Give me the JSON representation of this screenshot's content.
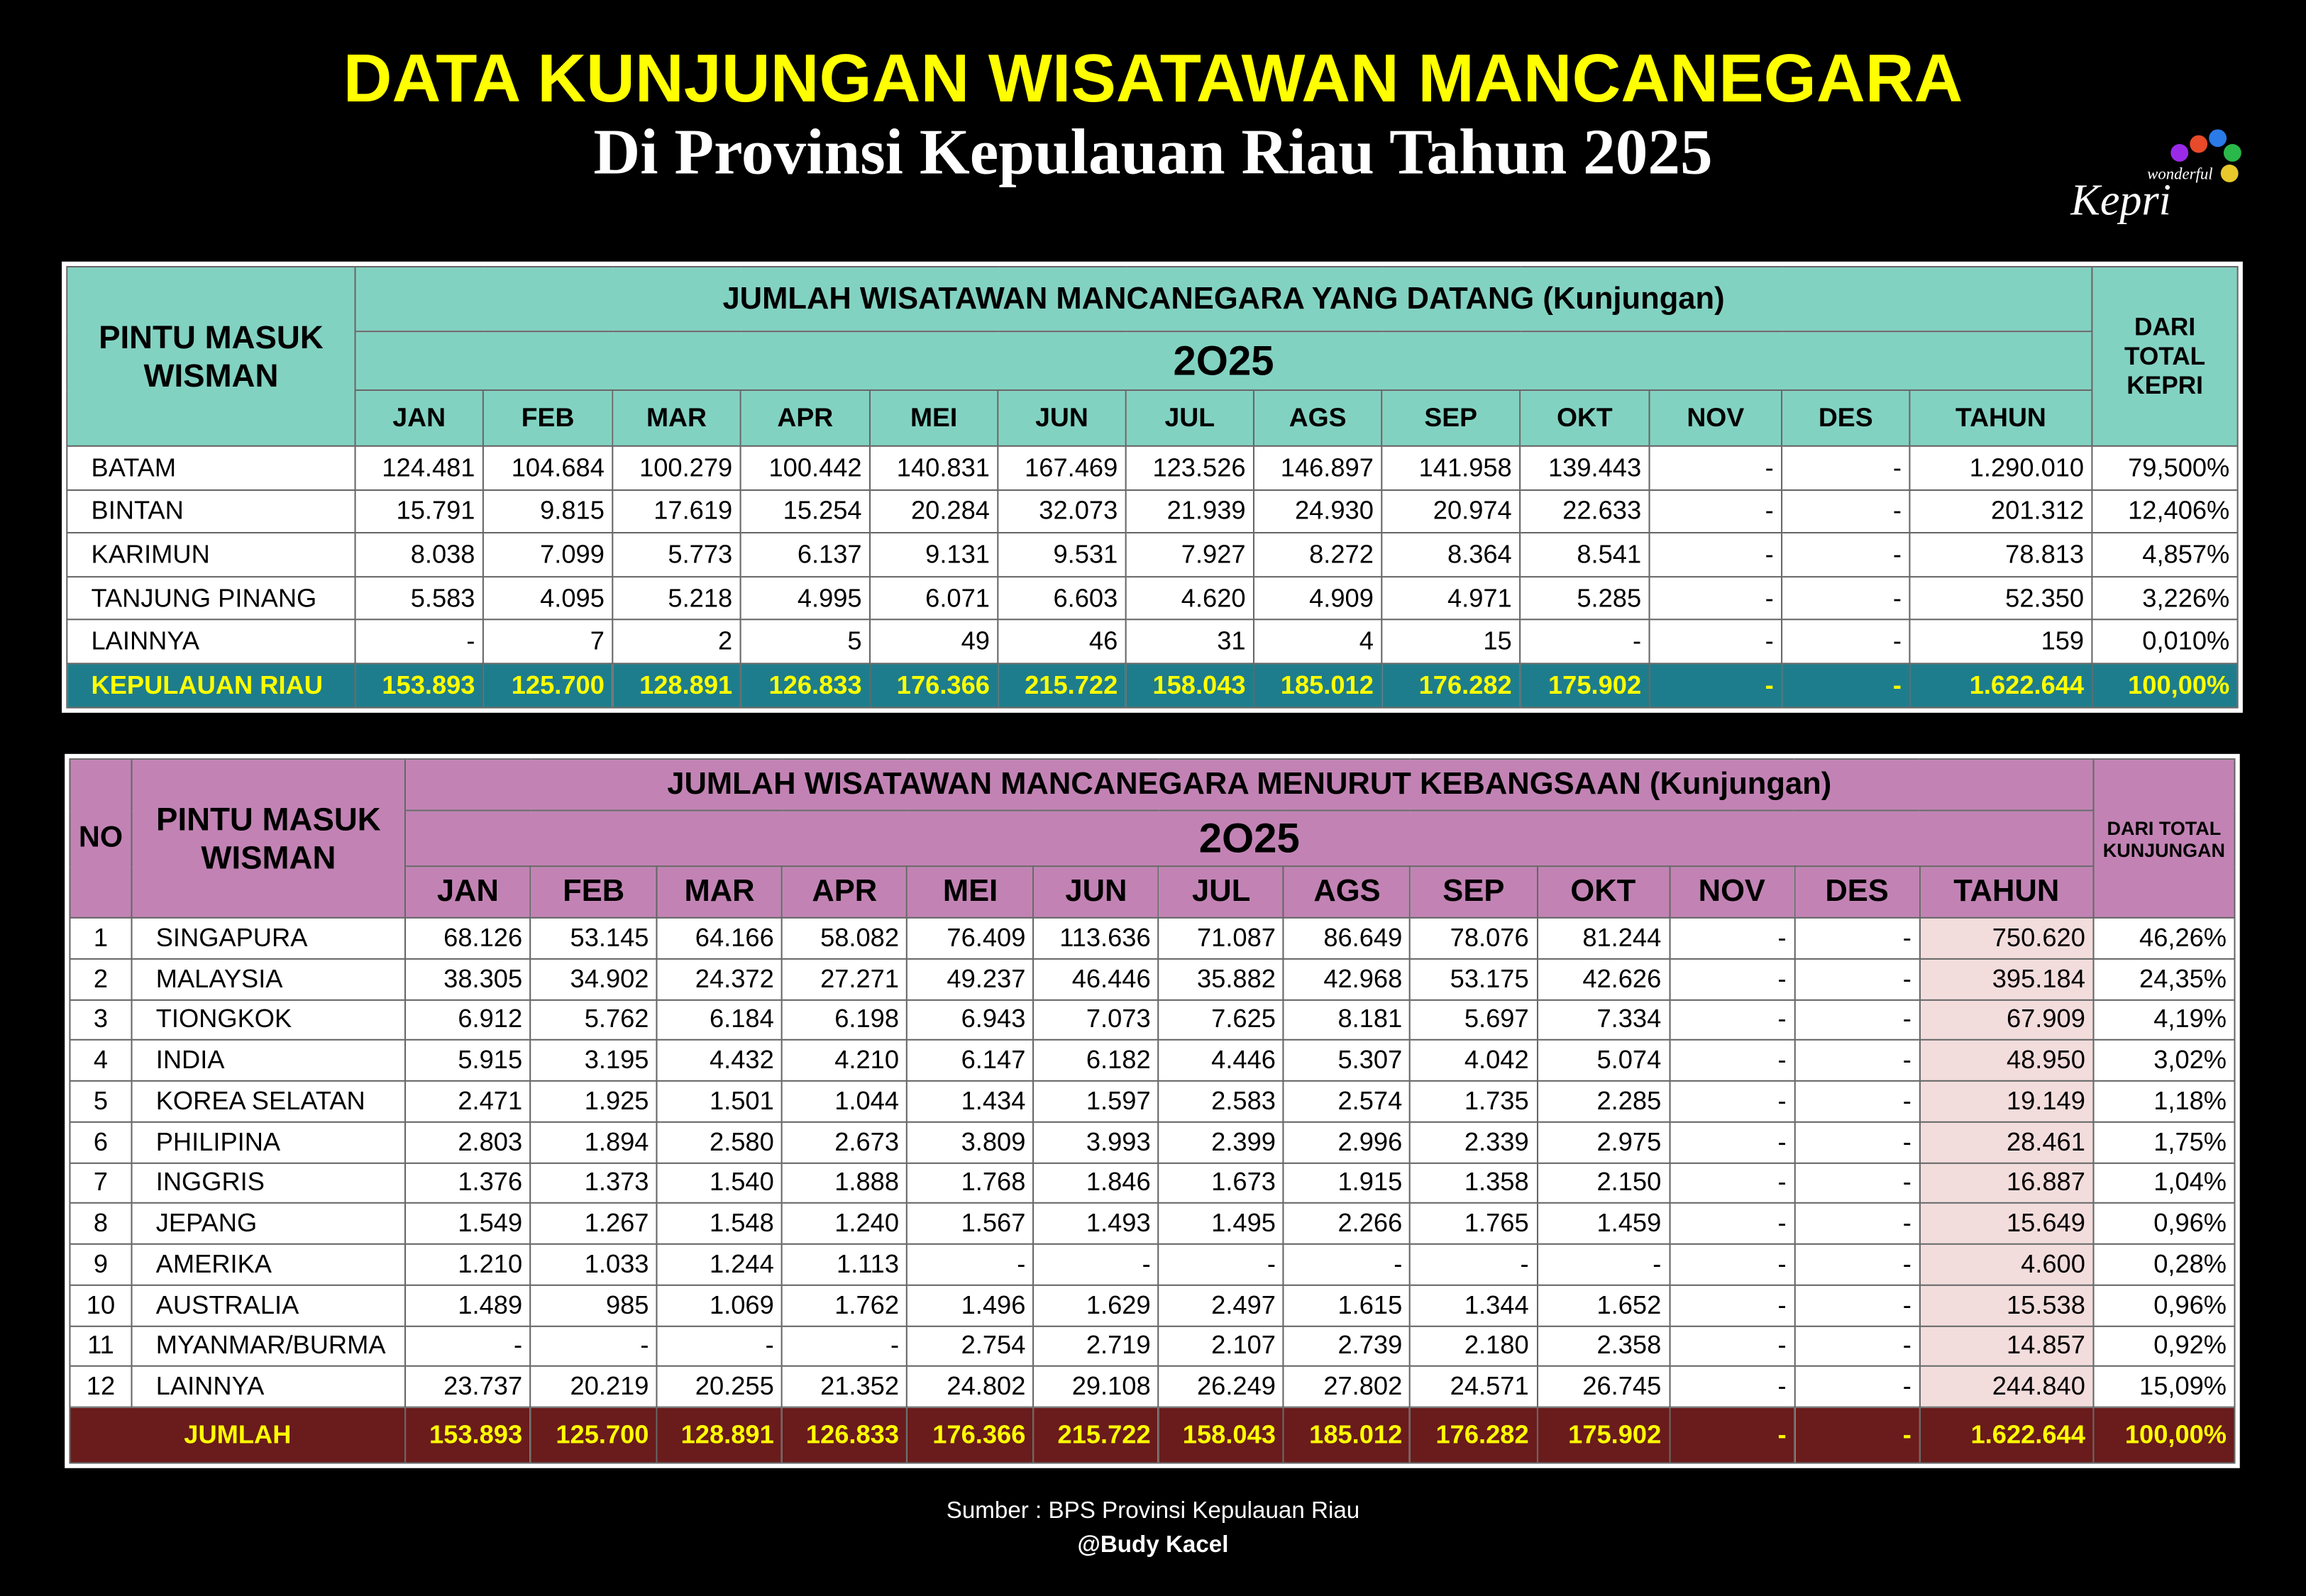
{
  "header": {
    "title": "DATA KUNJUNGAN WISATAWAN MANCANEGARA",
    "subtitle": "Di Provinsi Kepulauan Riau Tahun 2025",
    "logo_small": "wonderful",
    "logo_big": "Kepri"
  },
  "table1": {
    "corner": "PINTU MASUK WISMAN",
    "group": "JUMLAH WISATAWAN MANCANEGARA YANG DATANG (Kunjungan)",
    "year": "2O25",
    "last": "DARI TOTAL KEPRI",
    "columns": [
      "JAN",
      "FEB",
      "MAR",
      "APR",
      "MEI",
      "JUN",
      "JUL",
      "AGS",
      "SEP",
      "OKT",
      "NOV",
      "DES",
      "TAHUN"
    ],
    "rows": [
      [
        "BATAM",
        "124.481",
        "104.684",
        "100.279",
        "100.442",
        "140.831",
        "167.469",
        "123.526",
        "146.897",
        "141.958",
        "139.443",
        "-",
        "-",
        "1.290.010",
        "79,500%"
      ],
      [
        "BINTAN",
        "15.791",
        "9.815",
        "17.619",
        "15.254",
        "20.284",
        "32.073",
        "21.939",
        "24.930",
        "20.974",
        "22.633",
        "-",
        "-",
        "201.312",
        "12,406%"
      ],
      [
        "KARIMUN",
        "8.038",
        "7.099",
        "5.773",
        "6.137",
        "9.131",
        "9.531",
        "7.927",
        "8.272",
        "8.364",
        "8.541",
        "-",
        "-",
        "78.813",
        "4,857%"
      ],
      [
        "TANJUNG PINANG",
        "5.583",
        "4.095",
        "5.218",
        "4.995",
        "6.071",
        "6.603",
        "4.620",
        "4.909",
        "4.971",
        "5.285",
        "-",
        "-",
        "52.350",
        "3,226%"
      ],
      [
        "LAINNYA",
        "-",
        "7",
        "2",
        "5",
        "49",
        "46",
        "31",
        "4",
        "15",
        "-",
        "-",
        "-",
        "159",
        "0,010%"
      ]
    ],
    "total": [
      "KEPULAUAN RIAU",
      "153.893",
      "125.700",
      "128.891",
      "126.833",
      "176.366",
      "215.722",
      "158.043",
      "185.012",
      "176.282",
      "175.902",
      "-",
      "-",
      "1.622.644",
      "100,00%"
    ]
  },
  "table2": {
    "no": "NO",
    "corner": "PINTU MASUK WISMAN",
    "group": "JUMLAH WISATAWAN MANCANEGARA MENURUT KEBANGSAAN (Kunjungan)",
    "year": "2O25",
    "last": "DARI TOTAL KUNJUNGAN",
    "columns": [
      "JAN",
      "FEB",
      "MAR",
      "APR",
      "MEI",
      "JUN",
      "JUL",
      "AGS",
      "SEP",
      "OKT",
      "NOV",
      "DES",
      "TAHUN"
    ],
    "rows": [
      [
        "1",
        "SINGAPURA",
        "68.126",
        "53.145",
        "64.166",
        "58.082",
        "76.409",
        "113.636",
        "71.087",
        "86.649",
        "78.076",
        "81.244",
        "-",
        "-",
        "750.620",
        "46,26%"
      ],
      [
        "2",
        "MALAYSIA",
        "38.305",
        "34.902",
        "24.372",
        "27.271",
        "49.237",
        "46.446",
        "35.882",
        "42.968",
        "53.175",
        "42.626",
        "-",
        "-",
        "395.184",
        "24,35%"
      ],
      [
        "3",
        "TIONGKOK",
        "6.912",
        "5.762",
        "6.184",
        "6.198",
        "6.943",
        "7.073",
        "7.625",
        "8.181",
        "5.697",
        "7.334",
        "-",
        "-",
        "67.909",
        "4,19%"
      ],
      [
        "4",
        "INDIA",
        "5.915",
        "3.195",
        "4.432",
        "4.210",
        "6.147",
        "6.182",
        "4.446",
        "5.307",
        "4.042",
        "5.074",
        "-",
        "-",
        "48.950",
        "3,02%"
      ],
      [
        "5",
        "KOREA SELATAN",
        "2.471",
        "1.925",
        "1.501",
        "1.044",
        "1.434",
        "1.597",
        "2.583",
        "2.574",
        "1.735",
        "2.285",
        "-",
        "-",
        "19.149",
        "1,18%"
      ],
      [
        "6",
        "PHILIPINA",
        "2.803",
        "1.894",
        "2.580",
        "2.673",
        "3.809",
        "3.993",
        "2.399",
        "2.996",
        "2.339",
        "2.975",
        "-",
        "-",
        "28.461",
        "1,75%"
      ],
      [
        "7",
        "INGGRIS",
        "1.376",
        "1.373",
        "1.540",
        "1.888",
        "1.768",
        "1.846",
        "1.673",
        "1.915",
        "1.358",
        "2.150",
        "-",
        "-",
        "16.887",
        "1,04%"
      ],
      [
        "8",
        "JEPANG",
        "1.549",
        "1.267",
        "1.548",
        "1.240",
        "1.567",
        "1.493",
        "1.495",
        "2.266",
        "1.765",
        "1.459",
        "-",
        "-",
        "15.649",
        "0,96%"
      ],
      [
        "9",
        "AMERIKA",
        "1.210",
        "1.033",
        "1.244",
        "1.113",
        "-",
        "-",
        "-",
        "-",
        "-",
        "-",
        "-",
        "-",
        "4.600",
        "0,28%"
      ],
      [
        "10",
        "AUSTRALIA",
        "1.489",
        "985",
        "1.069",
        "1.762",
        "1.496",
        "1.629",
        "2.497",
        "1.615",
        "1.344",
        "1.652",
        "-",
        "-",
        "15.538",
        "0,96%"
      ],
      [
        "11",
        "MYANMAR/BURMA",
        "-",
        "-",
        "-",
        "-",
        "2.754",
        "2.719",
        "2.107",
        "2.739",
        "2.180",
        "2.358",
        "-",
        "-",
        "14.857",
        "0,92%"
      ],
      [
        "12",
        "LAINNYA",
        "23.737",
        "20.219",
        "20.255",
        "21.352",
        "24.802",
        "29.108",
        "26.249",
        "27.802",
        "24.571",
        "26.745",
        "-",
        "-",
        "244.840",
        "15,09%"
      ]
    ],
    "total": [
      "JUMLAH",
      "153.893",
      "125.700",
      "128.891",
      "126.833",
      "176.366",
      "215.722",
      "158.043",
      "185.012",
      "176.282",
      "175.902",
      "-",
      "-",
      "1.622.644",
      "100,00%"
    ]
  },
  "footer": {
    "source": "Sumber : BPS Provinsi Kepulauan Riau",
    "credit": "@Budy Kacel"
  }
}
